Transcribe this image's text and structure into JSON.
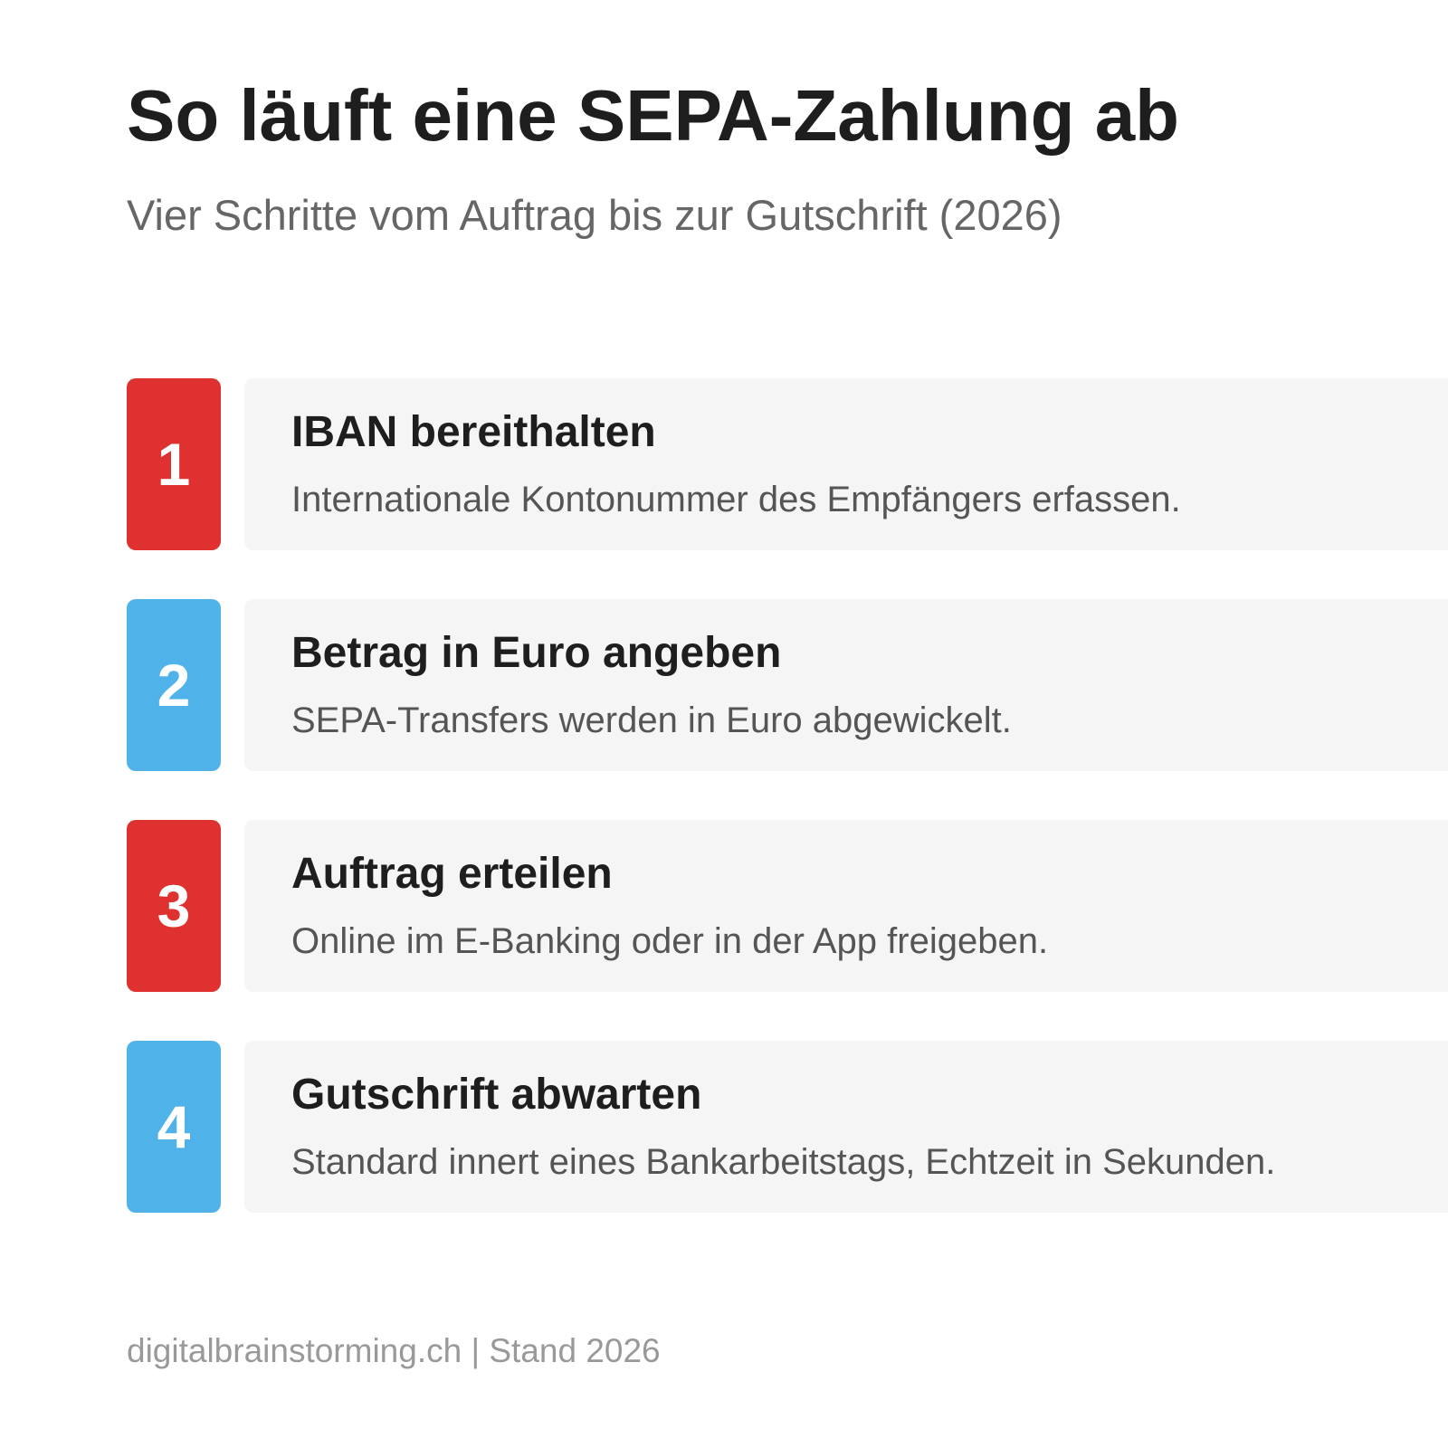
{
  "header": {
    "title": "So läuft eine SEPA-Zahlung ab",
    "subtitle": "Vier Schritte vom Auftrag bis zur Gutschrift (2026)"
  },
  "steps": [
    {
      "number": 1,
      "title": "IBAN bereithalten",
      "description": "Internationale Kontonummer des Empfängers erfassen."
    },
    {
      "number": 2,
      "title": "Betrag in Euro angeben",
      "description": "SEPA-Transfers werden in Euro abgewickelt."
    },
    {
      "number": 3,
      "title": "Auftrag erteilen",
      "description": "Online im E-Banking oder in der App freigeben."
    },
    {
      "number": 4,
      "title": "Gutschrift abwarten",
      "description": "Standard innert eines Bankarbeitstags, Echtzeit in Sekunden."
    }
  ],
  "footer": {
    "text": "digitalbrainstorming.ch | Stand 2026"
  }
}
